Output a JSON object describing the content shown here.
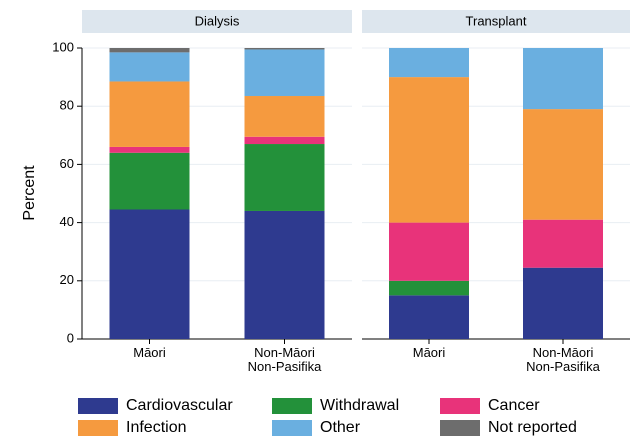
{
  "chart_data": [
    {
      "type": "stacked_bar",
      "title": "Dialysis",
      "y_label": "Percent",
      "categories": [
        "Māori",
        "Non-Māori\nNon-Pasifika"
      ],
      "series": [
        {
          "name": "Cardiovascular",
          "color": "#2e3a8f",
          "values": [
            44.5,
            44
          ]
        },
        {
          "name": "Withdrawal",
          "color": "#23913a",
          "values": [
            19.5,
            23
          ]
        },
        {
          "name": "Cancer",
          "color": "#e8337a",
          "values": [
            2,
            2.5
          ]
        },
        {
          "name": "Infection",
          "color": "#f59a3f",
          "values": [
            22.5,
            14
          ]
        },
        {
          "name": "Other",
          "color": "#6aafe0",
          "values": [
            10,
            16
          ]
        },
        {
          "name": "Not reported",
          "color": "#6d6d6d",
          "values": [
            1.5,
            0.5
          ]
        }
      ],
      "ylim": [
        0,
        100
      ],
      "yticks": [
        0,
        20,
        40,
        60,
        80,
        100
      ],
      "grid": true
    },
    {
      "type": "stacked_bar",
      "title": "Transplant",
      "categories": [
        "Māori",
        "Non-Māori\nNon-Pasifika"
      ],
      "series": [
        {
          "name": "Cardiovascular",
          "color": "#2e3a8f",
          "values": [
            15,
            24.5
          ]
        },
        {
          "name": "Withdrawal",
          "color": "#23913a",
          "values": [
            5,
            0
          ]
        },
        {
          "name": "Cancer",
          "color": "#e8337a",
          "values": [
            20,
            16.5
          ]
        },
        {
          "name": "Infection",
          "color": "#f59a3f",
          "values": [
            50,
            38
          ]
        },
        {
          "name": "Other",
          "color": "#6aafe0",
          "values": [
            10,
            21
          ]
        },
        {
          "name": "Not reported",
          "color": "#6d6d6d",
          "values": [
            0,
            0
          ]
        }
      ],
      "ylim": [
        0,
        100
      ],
      "grid": true
    }
  ]
}
